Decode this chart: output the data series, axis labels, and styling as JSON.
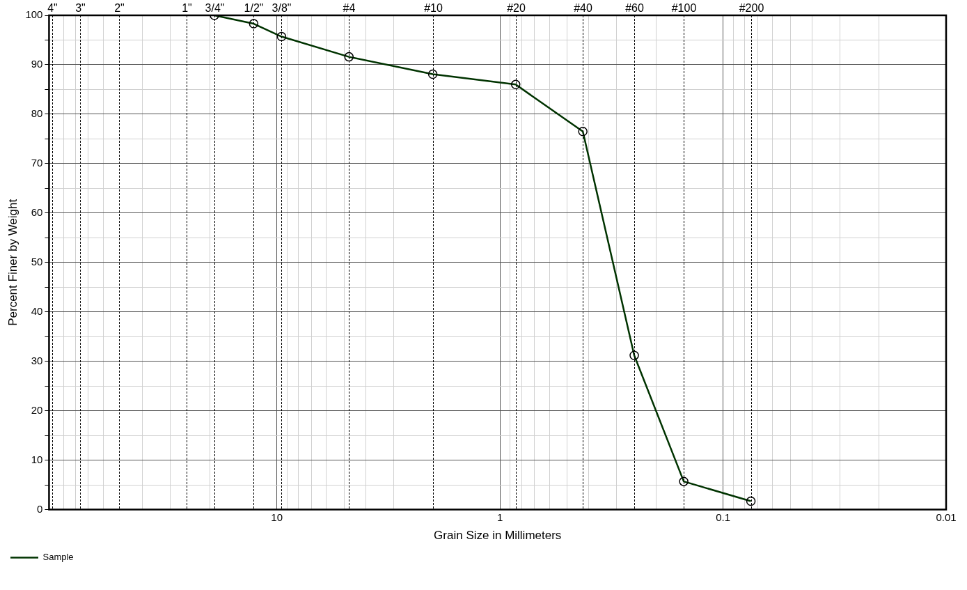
{
  "chart_data": {
    "type": "line",
    "xlabel": "Grain Size in Millimeters",
    "ylabel": "Percent Finer by Weight",
    "log": "x",
    "xlim": [
      105,
      0.01
    ],
    "xticks": [
      {
        "value": 90,
        "label": null
      },
      {
        "value": 80,
        "label": null
      },
      {
        "value": 70,
        "label": null
      },
      {
        "value": 60,
        "label": null
      },
      {
        "value": 40,
        "label": null
      },
      {
        "value": 30,
        "label": null
      },
      {
        "value": 20,
        "label": null
      },
      10,
      {
        "value": 9,
        "label": null
      },
      {
        "value": 8,
        "label": null
      },
      {
        "value": 7,
        "label": null
      },
      {
        "value": 6,
        "label": null
      },
      {
        "value": 5,
        "label": null
      },
      {
        "value": 4,
        "label": null
      },
      {
        "value": 3,
        "label": null
      },
      1,
      {
        "value": 0.9,
        "label": null
      },
      {
        "value": 0.8,
        "label": null
      },
      {
        "value": 0.7,
        "label": null
      },
      {
        "value": 0.6,
        "label": null
      },
      {
        "value": 0.5,
        "label": null
      },
      {
        "value": 0.4,
        "label": null
      },
      {
        "value": 0.3,
        "label": null
      },
      {
        "value": 0.2,
        "label": null
      },
      0.1,
      {
        "value": 0.09,
        "label": null
      },
      {
        "value": 0.08,
        "label": null
      },
      {
        "value": 0.07,
        "label": null
      },
      {
        "value": 0.06,
        "label": null
      },
      {
        "value": 0.05,
        "label": null
      },
      {
        "value": 0.04,
        "label": null
      },
      {
        "value": 0.03,
        "label": null
      },
      {
        "value": 0.02,
        "label": null
      },
      0.01
    ],
    "ylim": [
      0,
      100
    ],
    "yticks": [
      0,
      {
        "value": 5,
        "label": null
      },
      10,
      {
        "value": 15,
        "label": null
      },
      20,
      {
        "value": 25,
        "label": null
      },
      30,
      {
        "value": 35,
        "label": null
      },
      40,
      {
        "value": 45,
        "label": null
      },
      50,
      {
        "value": 55,
        "label": null
      },
      60,
      {
        "value": 65,
        "label": null
      },
      70,
      {
        "value": 75,
        "label": null
      },
      80,
      {
        "value": 85,
        "label": null
      },
      90,
      {
        "value": 95,
        "label": null
      },
      100
    ],
    "grid": true,
    "legend": "bottom left",
    "marker": "circle",
    "line_style": "solid",
    "series": [
      {
        "name": "Sample",
        "color": "#003300",
        "x": [
          19.05,
          12.7,
          9.525,
          4.75,
          2.0,
          0.85,
          0.425,
          0.25,
          0.15,
          0.075
        ],
        "values": [
          100,
          98.3,
          95.7,
          91.6,
          88.1,
          86.0,
          76.5,
          31.2,
          5.7,
          1.7
        ]
      }
    ],
    "annotations": [
      "4\"",
      "3\"",
      "2\"",
      "1\"",
      "3/4\"",
      "1/2\"",
      "3/8\"",
      "#4",
      "#10",
      "#20",
      "#40",
      "#60",
      "#100",
      "#200"
    ],
    "ref_lines": [
      {
        "axis": "x",
        "value": 101.6,
        "line_style": "dotted",
        "color": "#000000"
      },
      {
        "axis": "x",
        "value": 76.2,
        "line_style": "dotted",
        "color": "#000000"
      },
      {
        "axis": "x",
        "value": 50.8,
        "line_style": "dotted",
        "color": "#000000"
      },
      {
        "axis": "x",
        "value": 25.4,
        "line_style": "dotted",
        "color": "#000000"
      },
      {
        "axis": "x",
        "value": 19.05,
        "line_style": "dotted",
        "color": "#000000"
      },
      {
        "axis": "x",
        "value": 12.7,
        "line_style": "dotted",
        "color": "#000000"
      },
      {
        "axis": "x",
        "value": 9.525,
        "line_style": "dotted",
        "color": "#000000"
      },
      {
        "axis": "x",
        "value": 4.75,
        "line_style": "dotted",
        "color": "#000000"
      },
      {
        "axis": "x",
        "value": 2.0,
        "line_style": "dotted",
        "color": "#000000"
      },
      {
        "axis": "x",
        "value": 0.85,
        "line_style": "dotted",
        "color": "#000000"
      },
      {
        "axis": "x",
        "value": 0.425,
        "line_style": "dotted",
        "color": "#000000"
      },
      {
        "axis": "x",
        "value": 0.25,
        "line_style": "dotted",
        "color": "#000000"
      },
      {
        "axis": "x",
        "value": 0.15,
        "line_style": "dotted",
        "color": "#000000"
      },
      {
        "axis": "x",
        "value": 0.075,
        "line_style": "dotted",
        "color": "#000000"
      }
    ]
  }
}
